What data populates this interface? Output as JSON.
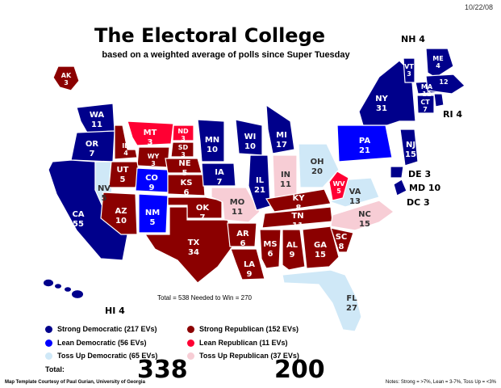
{
  "date": "10/22/08",
  "title": "The Electoral College",
  "subtitle": "based on a weighted average of polls since Super Tuesday",
  "colors": {
    "strong_dem": "#00008b",
    "lean_dem": "#0000ff",
    "tossup_dem": "#cfe8f7",
    "strong_rep": "#8b0000",
    "lean_rep": "#ff0033",
    "tossup_rep": "#f7cdd5"
  },
  "states": {
    "WA": {
      "abbr": "WA",
      "ev": "11",
      "cat": "strong_dem"
    },
    "OR": {
      "abbr": "OR",
      "ev": "7",
      "cat": "strong_dem"
    },
    "CA": {
      "abbr": "CA",
      "ev": "55",
      "cat": "strong_dem"
    },
    "NV": {
      "abbr": "NV",
      "ev": "5",
      "cat": "tossup_dem"
    },
    "ID": {
      "abbr": "ID",
      "ev": "4",
      "cat": "strong_rep"
    },
    "MT": {
      "abbr": "MT",
      "ev": "3",
      "cat": "lean_rep"
    },
    "WY": {
      "abbr": "WY",
      "ev": "3",
      "cat": "strong_rep"
    },
    "UT": {
      "abbr": "UT",
      "ev": "5",
      "cat": "strong_rep"
    },
    "AZ": {
      "abbr": "AZ",
      "ev": "10",
      "cat": "strong_rep"
    },
    "CO": {
      "abbr": "CO",
      "ev": "9",
      "cat": "lean_dem"
    },
    "NM": {
      "abbr": "NM",
      "ev": "5",
      "cat": "lean_dem"
    },
    "ND": {
      "abbr": "ND",
      "ev": "3",
      "cat": "lean_rep"
    },
    "SD": {
      "abbr": "SD",
      "ev": "3",
      "cat": "strong_rep"
    },
    "NE": {
      "abbr": "NE",
      "ev": "5",
      "cat": "strong_rep"
    },
    "KS": {
      "abbr": "KS",
      "ev": "6",
      "cat": "strong_rep"
    },
    "OK": {
      "abbr": "OK",
      "ev": "7",
      "cat": "strong_rep"
    },
    "TX": {
      "abbr": "TX",
      "ev": "34",
      "cat": "strong_rep"
    },
    "MN": {
      "abbr": "MN",
      "ev": "10",
      "cat": "strong_dem"
    },
    "IA": {
      "abbr": "IA",
      "ev": "7",
      "cat": "strong_dem"
    },
    "MO": {
      "abbr": "MO",
      "ev": "11",
      "cat": "tossup_rep"
    },
    "AR": {
      "abbr": "AR",
      "ev": "6",
      "cat": "strong_rep"
    },
    "LA": {
      "abbr": "LA",
      "ev": "9",
      "cat": "strong_rep"
    },
    "WI": {
      "abbr": "WI",
      "ev": "10",
      "cat": "strong_dem"
    },
    "IL": {
      "abbr": "IL",
      "ev": "21",
      "cat": "strong_dem"
    },
    "MI": {
      "abbr": "MI",
      "ev": "17",
      "cat": "strong_dem"
    },
    "IN": {
      "abbr": "IN",
      "ev": "11",
      "cat": "tossup_rep"
    },
    "OH": {
      "abbr": "OH",
      "ev": "20",
      "cat": "tossup_dem"
    },
    "KY": {
      "abbr": "KY",
      "ev": "8",
      "cat": "strong_rep"
    },
    "TN": {
      "abbr": "TN",
      "ev": "11",
      "cat": "strong_rep"
    },
    "MS": {
      "abbr": "MS",
      "ev": "6",
      "cat": "strong_rep"
    },
    "AL": {
      "abbr": "AL",
      "ev": "9",
      "cat": "strong_rep"
    },
    "GA": {
      "abbr": "GA",
      "ev": "15",
      "cat": "strong_rep"
    },
    "FL": {
      "abbr": "FL",
      "ev": "27",
      "cat": "tossup_dem"
    },
    "SC": {
      "abbr": "SC",
      "ev": "8",
      "cat": "strong_rep"
    },
    "NC": {
      "abbr": "NC",
      "ev": "15",
      "cat": "tossup_rep"
    },
    "VA": {
      "abbr": "VA",
      "ev": "13",
      "cat": "tossup_dem"
    },
    "WV": {
      "abbr": "WV",
      "ev": "5",
      "cat": "lean_rep"
    },
    "PA": {
      "abbr": "PA",
      "ev": "21",
      "cat": "lean_dem"
    },
    "NY": {
      "abbr": "NY",
      "ev": "31",
      "cat": "strong_dem"
    },
    "NJ": {
      "abbr": "NJ",
      "ev": "15",
      "cat": "strong_dem"
    },
    "VT": {
      "abbr": "VT",
      "ev": "3",
      "cat": "strong_dem"
    },
    "ME": {
      "abbr": "ME",
      "ev": "4",
      "cat": "strong_dem"
    },
    "MA": {
      "abbr": "MA",
      "ev": "12",
      "cat": "strong_dem"
    },
    "CT": {
      "abbr": "CT",
      "ev": "7",
      "cat": "strong_dem"
    },
    "AK": {
      "abbr": "AK",
      "ev": "3",
      "cat": "strong_rep"
    }
  },
  "callouts": {
    "NH": "NH  4",
    "RI": "RI  4",
    "DE": "DE  3",
    "MD": "MD 10",
    "DC": "DC  3",
    "HI": "HI  4"
  },
  "totals_line": "Total = 538     Needed to Win = 270",
  "legend": [
    {
      "label": "Strong Democratic (217 EVs)",
      "cat": "strong_dem"
    },
    {
      "label": "Lean Democratic (56 EVs)",
      "cat": "lean_dem"
    },
    {
      "label": "Toss Up Democratic (65 EVs)",
      "cat": "tossup_dem"
    },
    {
      "label": "Strong Republican (152 EVs)",
      "cat": "strong_rep"
    },
    {
      "label": "Lean Republican (11 EVs)",
      "cat": "lean_rep"
    },
    {
      "label": "Toss Up Republican (37 EVs)",
      "cat": "tossup_rep"
    }
  ],
  "total_label": "Total:",
  "dem_total": "338",
  "rep_total": "200",
  "credit": "Map Template Courtesy of Paul Gurian, University of Georgia",
  "notes": "Notes: Strong = >7%, Lean = 3-7%, Toss Up = <3%"
}
